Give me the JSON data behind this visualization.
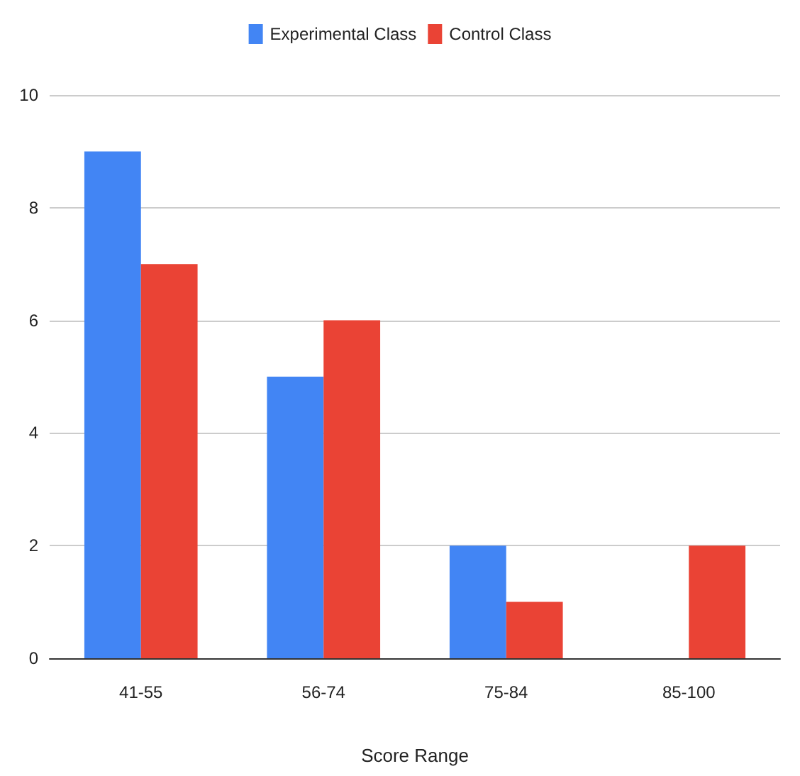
{
  "chart_data": {
    "type": "bar",
    "xlabel": "Score Range",
    "categories": [
      "41-55",
      "56-74",
      "75-84",
      "85-100"
    ],
    "series": [
      {
        "name": "Experimental Class",
        "color": "#4285f4",
        "values": [
          9,
          5,
          2,
          0
        ]
      },
      {
        "name": "Control Class",
        "color": "#ea4335",
        "values": [
          7,
          6,
          1,
          2
        ]
      }
    ],
    "ylim": [
      0,
      10
    ],
    "yticks": [
      0,
      2,
      4,
      6,
      8,
      10
    ],
    "grid": "y",
    "legend": "top"
  }
}
